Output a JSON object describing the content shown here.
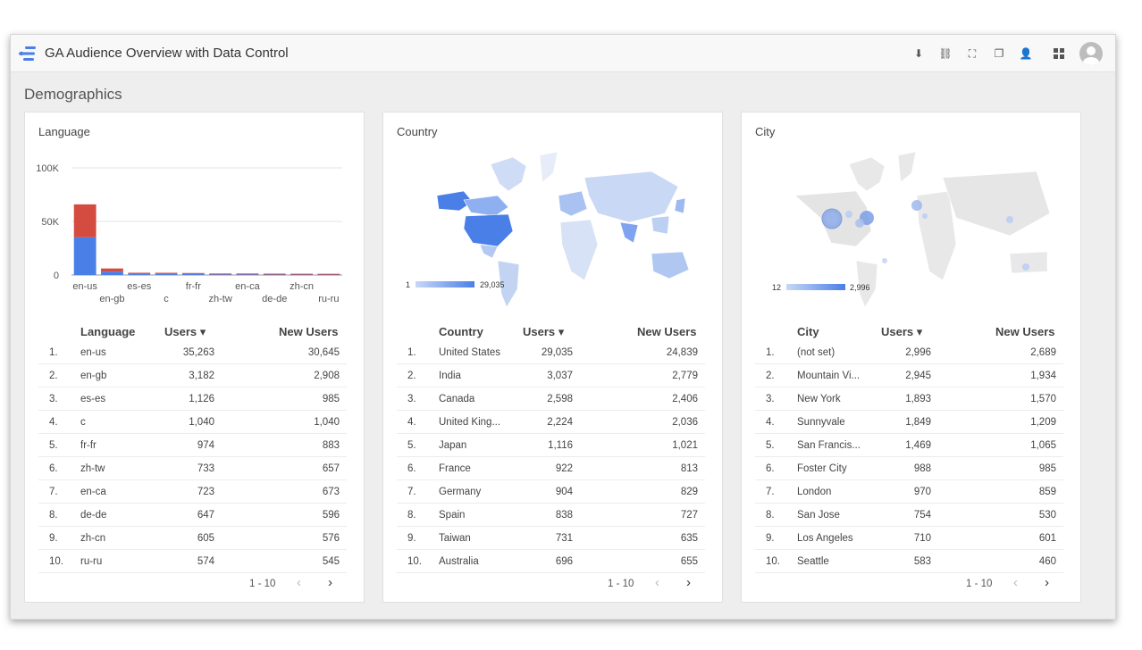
{
  "app": {
    "title": "GA Audience Overview with Data Control"
  },
  "toolbar": {
    "icons": [
      "download-icon",
      "link-icon",
      "fullscreen-icon",
      "copy-icon",
      "share-user-icon",
      "apps-grid-icon",
      "avatar-icon"
    ]
  },
  "section": {
    "title": "Demographics"
  },
  "language_card": {
    "title": "Language",
    "headers": {
      "name": "Language",
      "users": "Users ▾",
      "new": "New Users"
    },
    "rows": [
      {
        "idx": "1.",
        "name": "en-us",
        "users": "35,263",
        "new": "30,645"
      },
      {
        "idx": "2.",
        "name": "en-gb",
        "users": "3,182",
        "new": "2,908"
      },
      {
        "idx": "3.",
        "name": "es-es",
        "users": "1,126",
        "new": "985"
      },
      {
        "idx": "4.",
        "name": "c",
        "users": "1,040",
        "new": "1,040"
      },
      {
        "idx": "5.",
        "name": "fr-fr",
        "users": "974",
        "new": "883"
      },
      {
        "idx": "6.",
        "name": "zh-tw",
        "users": "733",
        "new": "657"
      },
      {
        "idx": "7.",
        "name": "en-ca",
        "users": "723",
        "new": "673"
      },
      {
        "idx": "8.",
        "name": "de-de",
        "users": "647",
        "new": "596"
      },
      {
        "idx": "9.",
        "name": "zh-cn",
        "users": "605",
        "new": "576"
      },
      {
        "idx": "10.",
        "name": "ru-ru",
        "users": "574",
        "new": "545"
      }
    ],
    "pager": "1 - 10"
  },
  "country_card": {
    "title": "Country",
    "legend": {
      "min": "1",
      "max": "29,035"
    },
    "headers": {
      "name": "Country",
      "users": "Users ▾",
      "new": "New Users"
    },
    "rows": [
      {
        "idx": "1.",
        "name": "United States",
        "users": "29,035",
        "new": "24,839"
      },
      {
        "idx": "2.",
        "name": "India",
        "users": "3,037",
        "new": "2,779"
      },
      {
        "idx": "3.",
        "name": "Canada",
        "users": "2,598",
        "new": "2,406"
      },
      {
        "idx": "4.",
        "name": "United King...",
        "users": "2,224",
        "new": "2,036"
      },
      {
        "idx": "5.",
        "name": "Japan",
        "users": "1,116",
        "new": "1,021"
      },
      {
        "idx": "6.",
        "name": "France",
        "users": "922",
        "new": "813"
      },
      {
        "idx": "7.",
        "name": "Germany",
        "users": "904",
        "new": "829"
      },
      {
        "idx": "8.",
        "name": "Spain",
        "users": "838",
        "new": "727"
      },
      {
        "idx": "9.",
        "name": "Taiwan",
        "users": "731",
        "new": "635"
      },
      {
        "idx": "10.",
        "name": "Australia",
        "users": "696",
        "new": "655"
      }
    ],
    "pager": "1 - 10"
  },
  "city_card": {
    "title": "City",
    "legend": {
      "min": "12",
      "max": "2,996"
    },
    "headers": {
      "name": "City",
      "users": "Users ▾",
      "new": "New Users"
    },
    "rows": [
      {
        "idx": "1.",
        "name": "(not set)",
        "users": "2,996",
        "new": "2,689"
      },
      {
        "idx": "2.",
        "name": "Mountain Vi...",
        "users": "2,945",
        "new": "1,934"
      },
      {
        "idx": "3.",
        "name": "New York",
        "users": "1,893",
        "new": "1,570"
      },
      {
        "idx": "4.",
        "name": "Sunnyvale",
        "users": "1,849",
        "new": "1,209"
      },
      {
        "idx": "5.",
        "name": "San Francis...",
        "users": "1,469",
        "new": "1,065"
      },
      {
        "idx": "6.",
        "name": "Foster City",
        "users": "988",
        "new": "985"
      },
      {
        "idx": "7.",
        "name": "London",
        "users": "970",
        "new": "859"
      },
      {
        "idx": "8.",
        "name": "San Jose",
        "users": "754",
        "new": "530"
      },
      {
        "idx": "9.",
        "name": "Los Angeles",
        "users": "710",
        "new": "601"
      },
      {
        "idx": "10.",
        "name": "Seattle",
        "users": "583",
        "new": "460"
      }
    ],
    "pager": "1 - 10"
  },
  "chart_data": {
    "type": "bar",
    "stacked": true,
    "categories": [
      "en-us",
      "en-gb",
      "es-es",
      "c",
      "fr-fr",
      "zh-tw",
      "en-ca",
      "de-de",
      "zh-cn",
      "ru-ru"
    ],
    "series": [
      {
        "values": [
          35263,
          3182,
          1126,
          1040,
          974,
          733,
          723,
          647,
          605,
          574
        ],
        "color": "#4a7fe8"
      },
      {
        "values": [
          30645,
          2908,
          985,
          1040,
          883,
          657,
          673,
          596,
          576,
          545
        ],
        "color": "#d44b3f"
      }
    ],
    "yticks": [
      "100K",
      "50K",
      "0"
    ],
    "ylim": [
      0,
      100000
    ],
    "grid": true
  }
}
